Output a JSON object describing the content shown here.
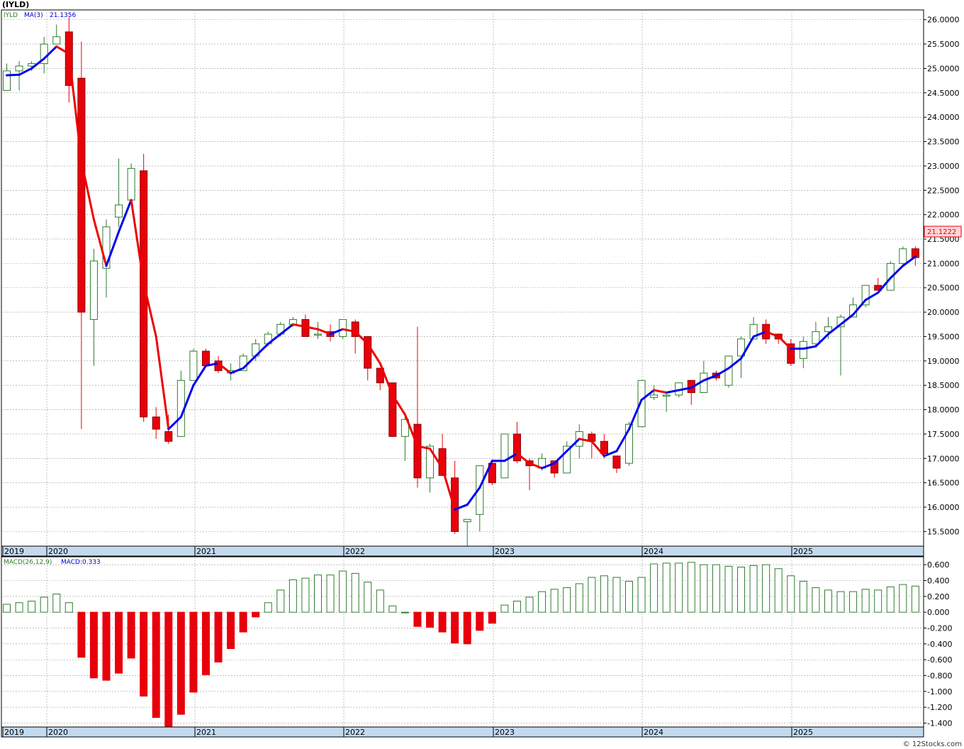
{
  "header": {
    "symbol": "(IYLD)"
  },
  "upper_panel": {
    "legend_symbol": "IYLD",
    "legend_ma_label": "MA(3)",
    "legend_ma_value": "21.1356",
    "last_price_tag": "21.1222"
  },
  "lower_panel": {
    "legend_macd_params": "MACD(26,12,9)",
    "legend_macd_value": "MACD:0.333"
  },
  "footer": {
    "copyright": "© 12Stocks.com"
  },
  "colors": {
    "up": "#2e7d2e",
    "down": "#e8000b",
    "ma_up": "#0000ee",
    "ma_down": "#ee0000",
    "grid": "#999999",
    "axis_band": "#c3d9ee",
    "macd_up": "#2e7d2e",
    "macd_down": "#e8000b"
  },
  "chart_data": [
    {
      "type": "candlestick",
      "title": "(IYLD)",
      "ylim": [
        15.2,
        26.2
      ],
      "y_ticks": [
        "26.0000",
        "25.5000",
        "25.0000",
        "24.5000",
        "24.0000",
        "23.5000",
        "23.0000",
        "22.5000",
        "22.0000",
        "21.5000",
        "21.0000",
        "20.5000",
        "20.0000",
        "19.5000",
        "19.0000",
        "18.5000",
        "18.0000",
        "17.5000",
        "17.0000",
        "16.5000",
        "16.0000",
        "15.5000"
      ],
      "x_tick_labels": [
        "2019",
        "2020",
        "2021",
        "2022",
        "2023",
        "2024",
        "2025"
      ],
      "candles": [
        {
          "o": 24.55,
          "h": 25.1,
          "l": 24.55,
          "c": 24.95
        },
        {
          "o": 24.95,
          "h": 25.15,
          "l": 24.55,
          "c": 25.05
        },
        {
          "o": 25.05,
          "h": 25.15,
          "l": 24.95,
          "c": 25.1
        },
        {
          "o": 25.1,
          "h": 25.65,
          "l": 24.9,
          "c": 25.5
        },
        {
          "o": 25.5,
          "h": 25.9,
          "l": 25.5,
          "c": 25.65
        },
        {
          "o": 25.75,
          "h": 26.05,
          "l": 24.3,
          "c": 24.65
        },
        {
          "o": 24.8,
          "h": 25.55,
          "l": 17.6,
          "c": 20.0
        },
        {
          "o": 19.85,
          "h": 21.3,
          "l": 18.9,
          "c": 21.05
        },
        {
          "o": 20.9,
          "h": 21.9,
          "l": 20.3,
          "c": 21.75
        },
        {
          "o": 21.95,
          "h": 23.15,
          "l": 21.75,
          "c": 22.2
        },
        {
          "o": 22.3,
          "h": 23.05,
          "l": 22.2,
          "c": 22.95
        },
        {
          "o": 22.9,
          "h": 23.25,
          "l": 17.75,
          "c": 17.85
        },
        {
          "o": 17.85,
          "h": 18.05,
          "l": 17.4,
          "c": 17.6
        },
        {
          "o": 17.55,
          "h": 17.9,
          "l": 17.3,
          "c": 17.35
        },
        {
          "o": 17.45,
          "h": 18.8,
          "l": 17.45,
          "c": 18.6
        },
        {
          "o": 18.6,
          "h": 19.25,
          "l": 18.6,
          "c": 19.2
        },
        {
          "o": 19.2,
          "h": 19.25,
          "l": 18.9,
          "c": 18.9
        },
        {
          "o": 19.0,
          "h": 19.1,
          "l": 18.75,
          "c": 18.8
        },
        {
          "o": 18.75,
          "h": 18.95,
          "l": 18.6,
          "c": 18.8
        },
        {
          "o": 18.8,
          "h": 19.15,
          "l": 18.8,
          "c": 19.1
        },
        {
          "o": 19.1,
          "h": 19.45,
          "l": 19.0,
          "c": 19.35
        },
        {
          "o": 19.35,
          "h": 19.6,
          "l": 19.3,
          "c": 19.55
        },
        {
          "o": 19.55,
          "h": 19.8,
          "l": 19.5,
          "c": 19.75
        },
        {
          "o": 19.75,
          "h": 19.9,
          "l": 19.7,
          "c": 19.85
        },
        {
          "o": 19.85,
          "h": 19.95,
          "l": 19.5,
          "c": 19.5
        },
        {
          "o": 19.55,
          "h": 19.8,
          "l": 19.45,
          "c": 19.55
        },
        {
          "o": 19.6,
          "h": 19.75,
          "l": 19.4,
          "c": 19.5
        },
        {
          "o": 19.5,
          "h": 19.85,
          "l": 19.45,
          "c": 19.85
        },
        {
          "o": 19.8,
          "h": 19.85,
          "l": 19.15,
          "c": 19.5
        },
        {
          "o": 19.5,
          "h": 19.5,
          "l": 18.6,
          "c": 18.85
        },
        {
          "o": 18.85,
          "h": 18.85,
          "l": 18.4,
          "c": 18.55
        },
        {
          "o": 18.55,
          "h": 18.55,
          "l": 17.45,
          "c": 17.45
        },
        {
          "o": 17.45,
          "h": 17.9,
          "l": 16.95,
          "c": 17.8
        },
        {
          "o": 17.7,
          "h": 19.7,
          "l": 16.4,
          "c": 16.6
        },
        {
          "o": 16.6,
          "h": 17.3,
          "l": 16.3,
          "c": 17.25
        },
        {
          "o": 17.2,
          "h": 17.5,
          "l": 16.65,
          "c": 16.65
        },
        {
          "o": 16.6,
          "h": 16.95,
          "l": 15.45,
          "c": 15.5
        },
        {
          "o": 15.7,
          "h": 15.75,
          "l": 15.2,
          "c": 15.75
        },
        {
          "o": 15.85,
          "h": 16.85,
          "l": 15.5,
          "c": 16.85
        },
        {
          "o": 16.9,
          "h": 16.95,
          "l": 16.45,
          "c": 16.5
        },
        {
          "o": 16.6,
          "h": 17.5,
          "l": 16.6,
          "c": 17.5
        },
        {
          "o": 17.5,
          "h": 17.75,
          "l": 16.9,
          "c": 16.95
        },
        {
          "o": 16.95,
          "h": 17.0,
          "l": 16.35,
          "c": 16.85
        },
        {
          "o": 16.8,
          "h": 17.1,
          "l": 16.75,
          "c": 17.0
        },
        {
          "o": 16.95,
          "h": 16.95,
          "l": 16.6,
          "c": 16.7
        },
        {
          "o": 16.7,
          "h": 17.35,
          "l": 16.7,
          "c": 17.25
        },
        {
          "o": 17.25,
          "h": 17.7,
          "l": 17.0,
          "c": 17.55
        },
        {
          "o": 17.5,
          "h": 17.55,
          "l": 17.0,
          "c": 17.35
        },
        {
          "o": 17.35,
          "h": 17.5,
          "l": 17.0,
          "c": 17.1
        },
        {
          "o": 17.05,
          "h": 17.05,
          "l": 16.7,
          "c": 16.8
        },
        {
          "o": 16.9,
          "h": 17.75,
          "l": 16.85,
          "c": 17.7
        },
        {
          "o": 17.65,
          "h": 18.6,
          "l": 17.65,
          "c": 18.6
        },
        {
          "o": 18.25,
          "h": 18.5,
          "l": 18.2,
          "c": 18.3
        },
        {
          "o": 18.3,
          "h": 18.35,
          "l": 17.95,
          "c": 18.3
        },
        {
          "o": 18.3,
          "h": 18.55,
          "l": 18.25,
          "c": 18.55
        },
        {
          "o": 18.6,
          "h": 18.6,
          "l": 18.1,
          "c": 18.35
        },
        {
          "o": 18.35,
          "h": 19.0,
          "l": 18.35,
          "c": 18.75
        },
        {
          "o": 18.75,
          "h": 18.8,
          "l": 18.6,
          "c": 18.65
        },
        {
          "o": 18.5,
          "h": 19.1,
          "l": 18.45,
          "c": 19.1
        },
        {
          "o": 19.1,
          "h": 19.5,
          "l": 18.65,
          "c": 19.45
        },
        {
          "o": 19.45,
          "h": 19.9,
          "l": 19.45,
          "c": 19.75
        },
        {
          "o": 19.75,
          "h": 19.85,
          "l": 19.35,
          "c": 19.45
        },
        {
          "o": 19.55,
          "h": 19.55,
          "l": 19.35,
          "c": 19.45
        },
        {
          "o": 19.35,
          "h": 19.45,
          "l": 18.9,
          "c": 18.95
        },
        {
          "o": 19.05,
          "h": 19.5,
          "l": 18.85,
          "c": 19.4
        },
        {
          "o": 19.35,
          "h": 19.8,
          "l": 19.3,
          "c": 19.6
        },
        {
          "o": 19.6,
          "h": 19.9,
          "l": 19.45,
          "c": 19.7
        },
        {
          "o": 19.7,
          "h": 19.95,
          "l": 18.7,
          "c": 19.9
        },
        {
          "o": 19.9,
          "h": 20.3,
          "l": 19.9,
          "c": 20.15
        },
        {
          "o": 20.15,
          "h": 20.55,
          "l": 20.1,
          "c": 20.55
        },
        {
          "o": 20.55,
          "h": 20.7,
          "l": 20.45,
          "c": 20.45
        },
        {
          "o": 20.45,
          "h": 21.05,
          "l": 20.45,
          "c": 21.0
        },
        {
          "o": 21.0,
          "h": 21.35,
          "l": 20.95,
          "c": 21.3
        },
        {
          "o": 21.3,
          "h": 21.35,
          "l": 20.95,
          "c": 21.12
        }
      ],
      "ma3": [
        24.86,
        24.87,
        25.0,
        25.2,
        25.45,
        25.3,
        23.1,
        21.9,
        20.95,
        21.65,
        22.3,
        20.6,
        19.5,
        17.6,
        17.85,
        18.5,
        18.9,
        18.95,
        18.75,
        18.85,
        19.1,
        19.35,
        19.55,
        19.75,
        19.7,
        19.65,
        19.55,
        19.65,
        19.6,
        19.35,
        18.95,
        18.3,
        17.9,
        17.25,
        17.2,
        16.8,
        15.95,
        16.05,
        16.4,
        16.95,
        16.95,
        17.1,
        16.9,
        16.8,
        16.9,
        17.15,
        17.4,
        17.35,
        17.05,
        17.15,
        17.6,
        18.2,
        18.4,
        18.35,
        18.4,
        18.45,
        18.6,
        18.7,
        18.85,
        19.05,
        19.5,
        19.6,
        19.5,
        19.25,
        19.25,
        19.3,
        19.55,
        19.75,
        19.95,
        20.25,
        20.4,
        20.7,
        20.95,
        21.14
      ]
    },
    {
      "type": "bar",
      "title": "MACD(26,12,9)",
      "ylim": [
        -1.45,
        0.7
      ],
      "y_ticks": [
        "0.600",
        "0.400",
        "0.200",
        "0.000",
        "-0.200",
        "-0.400",
        "-0.600",
        "-0.800",
        "-1.000",
        "-1.200",
        "-1.400"
      ],
      "values": [
        0.1,
        0.12,
        0.14,
        0.19,
        0.23,
        0.12,
        -0.57,
        -0.83,
        -0.86,
        -0.77,
        -0.58,
        -1.06,
        -1.33,
        -1.45,
        -1.29,
        -1.01,
        -0.79,
        -0.63,
        -0.46,
        -0.25,
        -0.06,
        0.12,
        0.28,
        0.41,
        0.43,
        0.47,
        0.47,
        0.52,
        0.49,
        0.38,
        0.28,
        0.08,
        0.0,
        -0.18,
        -0.19,
        -0.25,
        -0.39,
        -0.4,
        -0.23,
        -0.14,
        0.09,
        0.14,
        0.19,
        0.26,
        0.29,
        0.31,
        0.36,
        0.44,
        0.46,
        0.44,
        0.39,
        0.44,
        0.61,
        0.62,
        0.62,
        0.63,
        0.6,
        0.6,
        0.58,
        0.57,
        0.59,
        0.6,
        0.55,
        0.46,
        0.39,
        0.31,
        0.28,
        0.26,
        0.26,
        0.29,
        0.28,
        0.32,
        0.35,
        0.33
      ]
    }
  ]
}
